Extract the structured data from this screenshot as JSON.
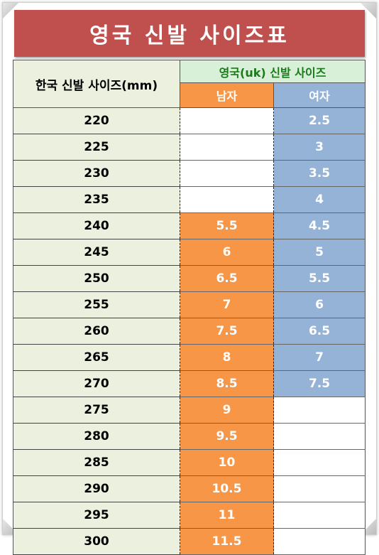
{
  "title": "영국 신발 사이즈표",
  "headers": {
    "korea": "한국 신발 사이즈(mm)",
    "uk": "영국(uk) 신발 사이즈",
    "men": "남자",
    "women": "여자"
  },
  "colors": {
    "title_bg": "#c0504d",
    "korea_bg": "#ebf1de",
    "uk_header_bg": "#d8f0d8",
    "uk_header_text": "#1a7a1a",
    "men_bg": "#f79646",
    "women_bg": "#95b3d7"
  },
  "rows": [
    {
      "kr": "220",
      "men": "",
      "women": "2.5"
    },
    {
      "kr": "225",
      "men": "",
      "women": "3"
    },
    {
      "kr": "230",
      "men": "",
      "women": "3.5"
    },
    {
      "kr": "235",
      "men": "",
      "women": "4"
    },
    {
      "kr": "240",
      "men": "5.5",
      "women": "4.5"
    },
    {
      "kr": "245",
      "men": "6",
      "women": "5"
    },
    {
      "kr": "250",
      "men": "6.5",
      "women": "5.5"
    },
    {
      "kr": "255",
      "men": "7",
      "women": "6"
    },
    {
      "kr": "260",
      "men": "7.5",
      "women": "6.5"
    },
    {
      "kr": "265",
      "men": "8",
      "women": "7"
    },
    {
      "kr": "270",
      "men": "8.5",
      "women": "7.5"
    },
    {
      "kr": "275",
      "men": "9",
      "women": ""
    },
    {
      "kr": "280",
      "men": "9.5",
      "women": ""
    },
    {
      "kr": "285",
      "men": "10",
      "women": ""
    },
    {
      "kr": "290",
      "men": "10.5",
      "women": ""
    },
    {
      "kr": "295",
      "men": "11",
      "women": ""
    },
    {
      "kr": "300",
      "men": "11.5",
      "women": ""
    }
  ]
}
